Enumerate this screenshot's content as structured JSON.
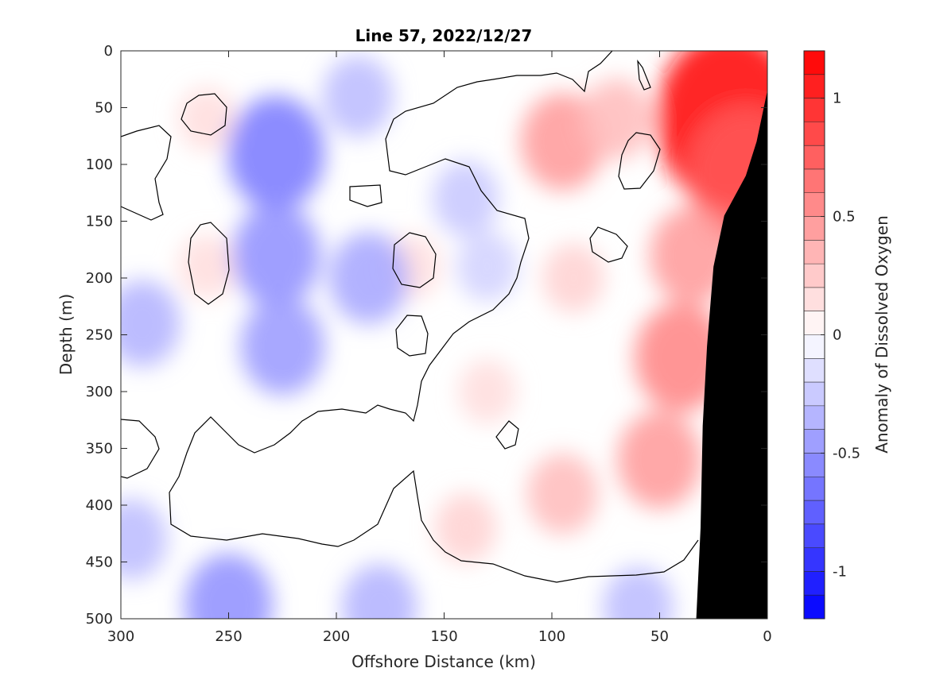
{
  "chart_data": {
    "type": "heatmap",
    "title": "Line 57, 2022/12/27",
    "xlabel": "Offshore Distance (km)",
    "ylabel": "Depth (m)",
    "colorbar_label": "Anomaly of Dissolved Oxygen",
    "xlim": [
      300,
      0
    ],
    "ylim": [
      0,
      500
    ],
    "x_reversed": true,
    "y_reversed": true,
    "x_ticks": [
      300,
      250,
      200,
      150,
      100,
      50,
      0
    ],
    "y_ticks": [
      0,
      50,
      100,
      150,
      200,
      250,
      300,
      350,
      400,
      450,
      500
    ],
    "clim": [
      -1.2,
      1.2
    ],
    "colorbar_levels": 24,
    "colorbar_ticks": [
      {
        "value": 1,
        "label": "1"
      },
      {
        "value": 0.5,
        "label": "0.5"
      },
      {
        "value": 0,
        "label": "0"
      },
      {
        "value": -0.5,
        "label": "-0.5"
      },
      {
        "value": -1,
        "label": "-1"
      }
    ],
    "colors": {
      "negative_max": "#0000ff",
      "positive_max": "#ff0000",
      "neutral": "#ffffff",
      "land": "#000000",
      "contour": "#000000"
    },
    "zero_contour": true,
    "field_features": [
      {
        "x": 18,
        "y": 60,
        "anomaly": 1.15
      },
      {
        "x": 10,
        "y": 110,
        "anomaly": 0.8
      },
      {
        "x": 35,
        "y": 180,
        "anomaly": 0.45
      },
      {
        "x": 40,
        "y": 270,
        "anomaly": 0.55
      },
      {
        "x": 50,
        "y": 360,
        "anomaly": 0.45
      },
      {
        "x": 95,
        "y": 80,
        "anomaly": 0.45
      },
      {
        "x": 70,
        "y": 60,
        "anomaly": 0.3
      },
      {
        "x": 90,
        "y": 200,
        "anomaly": 0.2
      },
      {
        "x": 95,
        "y": 390,
        "anomaly": 0.3
      },
      {
        "x": 140,
        "y": 420,
        "anomaly": 0.2
      },
      {
        "x": 130,
        "y": 300,
        "anomaly": 0.15
      },
      {
        "x": 260,
        "y": 190,
        "anomaly": 0.15
      },
      {
        "x": 260,
        "y": 60,
        "anomaly": 0.15
      },
      {
        "x": 165,
        "y": 190,
        "anomaly": 0.15
      },
      {
        "x": 228,
        "y": 90,
        "anomaly": -0.6
      },
      {
        "x": 228,
        "y": 180,
        "anomaly": -0.5
      },
      {
        "x": 225,
        "y": 260,
        "anomaly": -0.45
      },
      {
        "x": 185,
        "y": 200,
        "anomaly": -0.4
      },
      {
        "x": 290,
        "y": 240,
        "anomaly": -0.35
      },
      {
        "x": 140,
        "y": 130,
        "anomaly": -0.25
      },
      {
        "x": 130,
        "y": 190,
        "anomaly": -0.2
      },
      {
        "x": 250,
        "y": 488,
        "anomaly": -0.5
      },
      {
        "x": 180,
        "y": 490,
        "anomaly": -0.35
      },
      {
        "x": 60,
        "y": 490,
        "anomaly": -0.3
      },
      {
        "x": 295,
        "y": 430,
        "anomaly": -0.3
      },
      {
        "x": 190,
        "y": 40,
        "anomaly": -0.3
      }
    ],
    "coastline_depth_profile": [
      {
        "x": 0,
        "y": 35
      },
      {
        "x": 5,
        "y": 80
      },
      {
        "x": 10,
        "y": 110
      },
      {
        "x": 20,
        "y": 145
      },
      {
        "x": 25,
        "y": 190
      },
      {
        "x": 28,
        "y": 260
      },
      {
        "x": 30,
        "y": 330
      },
      {
        "x": 31,
        "y": 420
      },
      {
        "x": 33,
        "y": 500
      }
    ]
  }
}
